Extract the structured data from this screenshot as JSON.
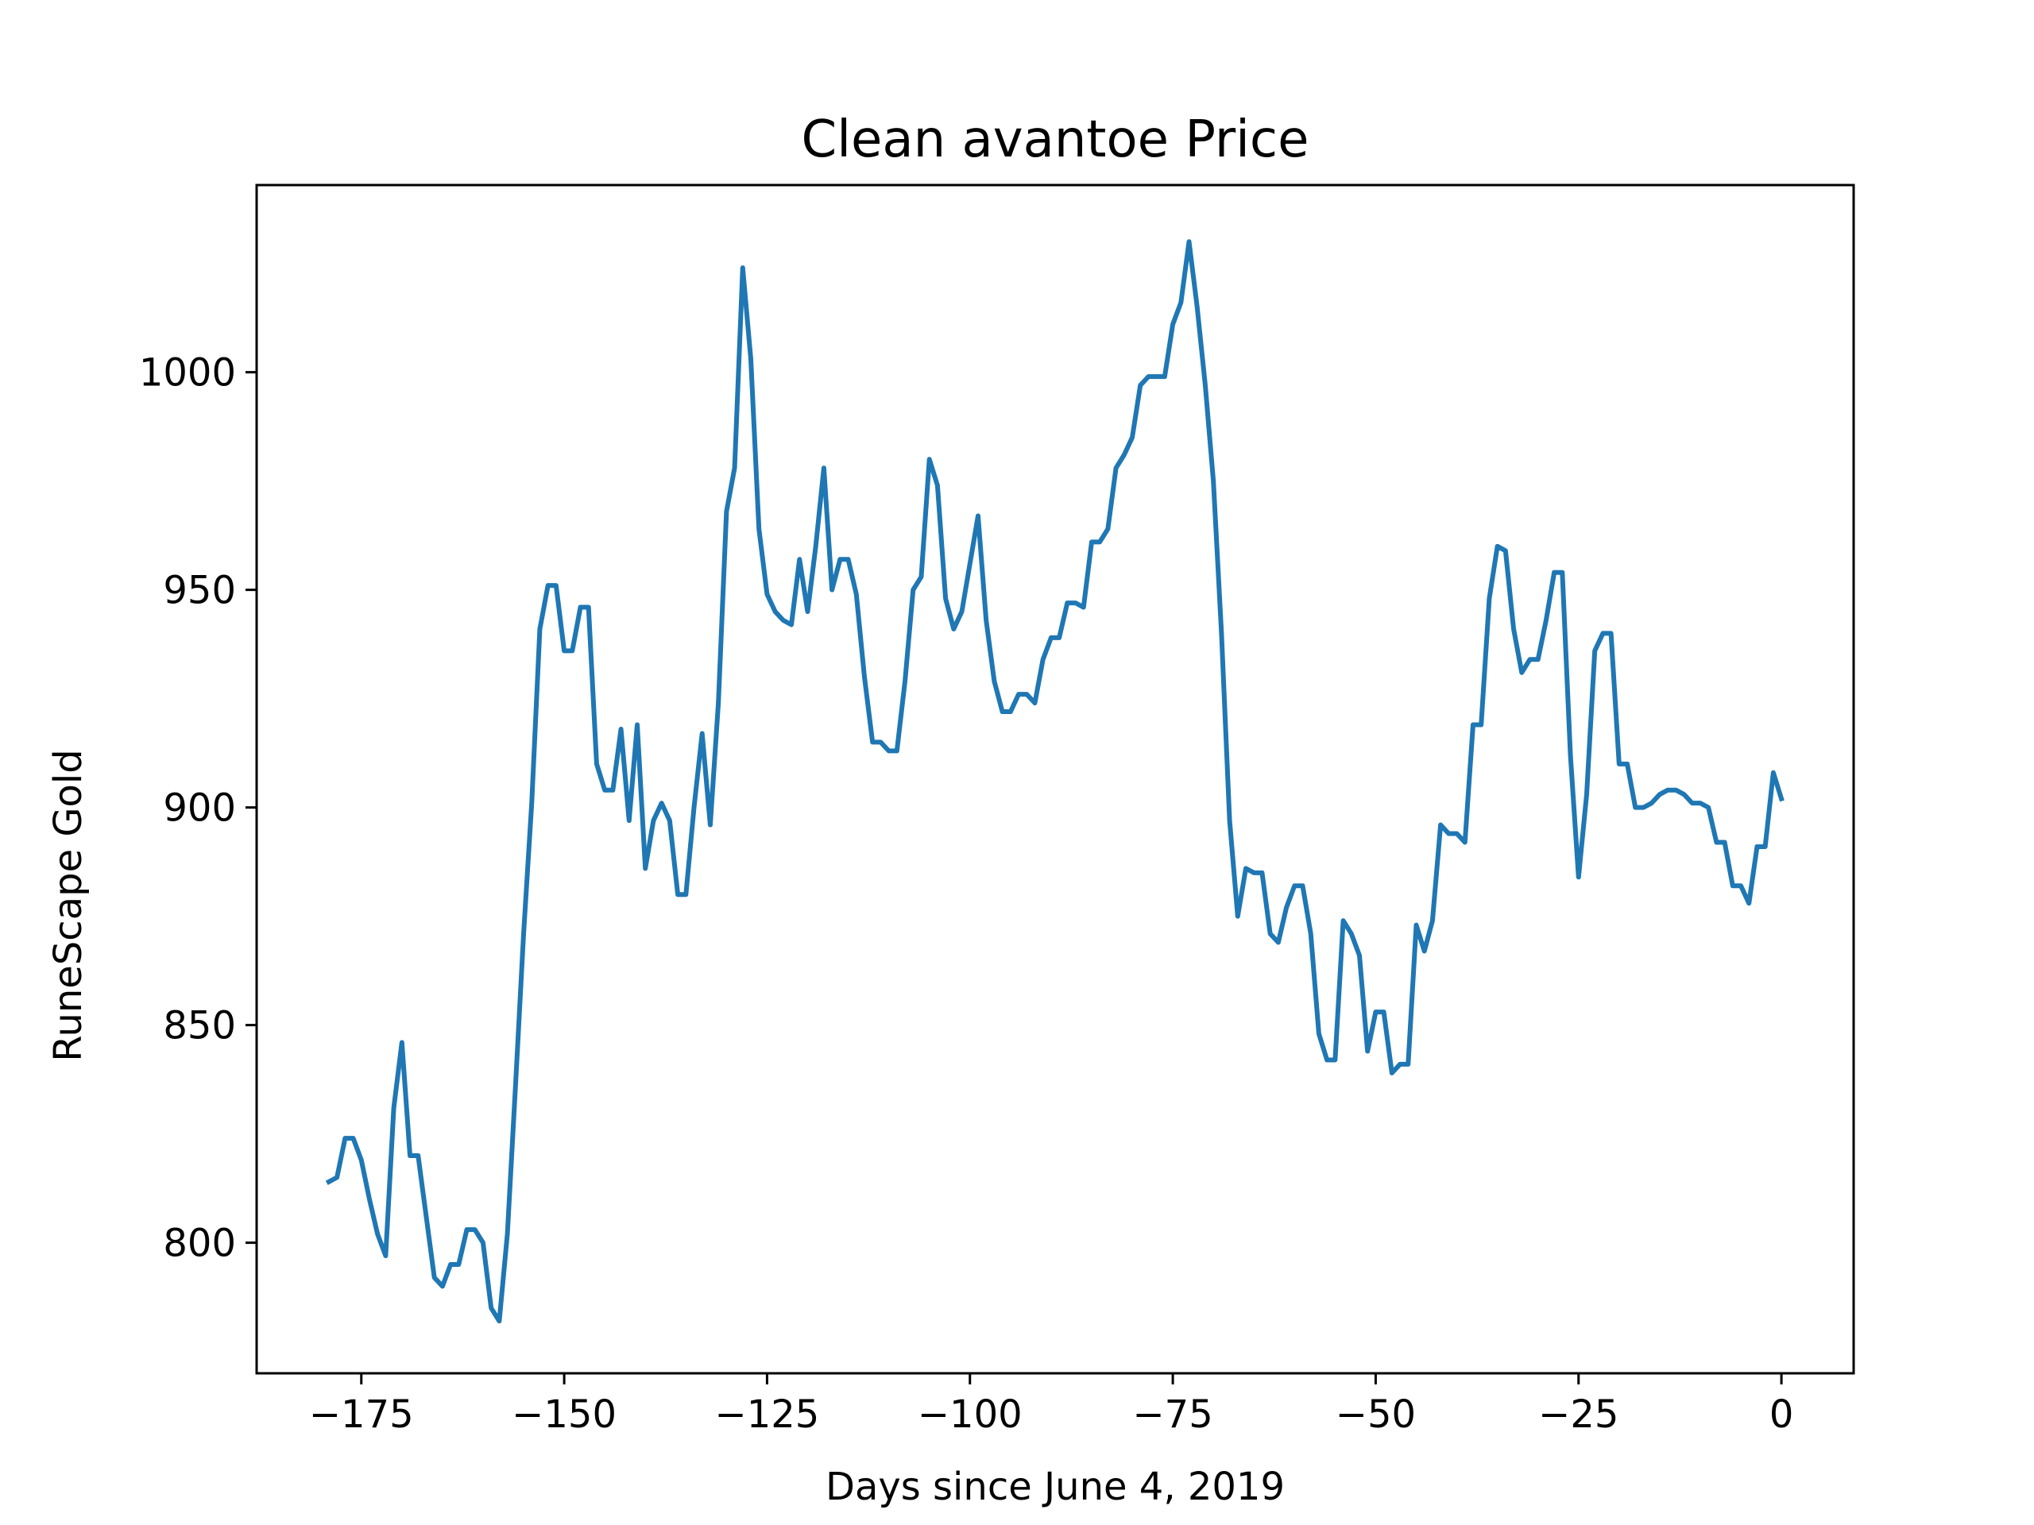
{
  "chart_data": {
    "type": "line",
    "title": "Clean avantoe Price",
    "xlabel": "Days since June 4, 2019",
    "ylabel": "RuneScape Gold",
    "xlim": [
      -187.9,
      8.9
    ],
    "ylim": [
      770,
      1043
    ],
    "x_ticks": [
      -175,
      -150,
      -125,
      -100,
      -75,
      -50,
      -25,
      0
    ],
    "x_tick_labels": [
      "−175",
      "−150",
      "−125",
      "−100",
      "−75",
      "−50",
      "−25",
      "0"
    ],
    "y_ticks": [
      800,
      850,
      900,
      950,
      1000
    ],
    "y_tick_labels": [
      "800",
      "850",
      "900",
      "950",
      "1000"
    ],
    "grid": false,
    "color": "#1f77b4",
    "series": [
      {
        "x": [
          -179,
          -178,
          -177,
          -176,
          -175,
          -174,
          -173,
          -172,
          -171,
          -170,
          -169,
          -168,
          -167,
          -166,
          -165,
          -164,
          -163,
          -162,
          -161,
          -160,
          -159,
          -158,
          -157,
          -156,
          -155,
          -154,
          -153,
          -152,
          -151,
          -150,
          -149,
          -148,
          -147,
          -146,
          -145,
          -144,
          -143,
          -142,
          -141,
          -140,
          -139,
          -138,
          -137,
          -136,
          -135,
          -134,
          -133,
          -132,
          -131,
          -130,
          -129,
          -128,
          -127,
          -126,
          -125,
          -124,
          -123,
          -122,
          -121,
          -120,
          -119,
          -118,
          -117,
          -116,
          -115,
          -114,
          -113,
          -112,
          -111,
          -110,
          -109,
          -108,
          -107,
          -106,
          -105,
          -104,
          -103,
          -102,
          -101,
          -100,
          -99,
          -98,
          -97,
          -96,
          -95,
          -94,
          -93,
          -92,
          -91,
          -90,
          -89,
          -88,
          -87,
          -86,
          -85,
          -84,
          -83,
          -82,
          -81,
          -80,
          -79,
          -78,
          -77,
          -76,
          -75,
          -74,
          -73,
          -72,
          -71,
          -70,
          -69,
          -68,
          -67,
          -66,
          -65,
          -64,
          -63,
          -62,
          -61,
          -60,
          -59,
          -58,
          -57,
          -56,
          -55,
          -54,
          -53,
          -52,
          -51,
          -50,
          -49,
          -48,
          -47,
          -46,
          -45,
          -44,
          -43,
          -42,
          -41,
          -40,
          -39,
          -38,
          -37,
          -36,
          -35,
          -34,
          -33,
          -32,
          -31,
          -30,
          -29,
          -28,
          -27,
          -26,
          -25,
          -24,
          -23,
          -22,
          -21,
          -20,
          -19,
          -18,
          -17,
          -16,
          -15,
          -14,
          -13,
          -12,
          -11,
          -10,
          -9,
          -8,
          -7,
          -6,
          -5,
          -4,
          -3,
          -2,
          -1,
          0
        ],
        "y": [
          814,
          815,
          824,
          824,
          819,
          810,
          802,
          797,
          831,
          846,
          820,
          820,
          806,
          792,
          790,
          795,
          795,
          803,
          803,
          800,
          785,
          782,
          802,
          836,
          871,
          901,
          941,
          951,
          951,
          936,
          936,
          946,
          946,
          910,
          904,
          904,
          918,
          897,
          919,
          886,
          897,
          901,
          897,
          880,
          880,
          900,
          917,
          896,
          924,
          968,
          978,
          1024,
          1003,
          964,
          949,
          945,
          943,
          942,
          957,
          945,
          960,
          978,
          950,
          957,
          957,
          949,
          930,
          915,
          915,
          913,
          913,
          929,
          950,
          953,
          980,
          974,
          948,
          941,
          945,
          956,
          967,
          943,
          929,
          922,
          922,
          926,
          926,
          924,
          934,
          939,
          939,
          947,
          947,
          946,
          961,
          961,
          964,
          978,
          981,
          985,
          997,
          999,
          999,
          999,
          1011,
          1016,
          1030,
          1015,
          997,
          975,
          940,
          897,
          875,
          886,
          885,
          885,
          871,
          869,
          877,
          882,
          882,
          871,
          848,
          842,
          842,
          874,
          871,
          866,
          844,
          853,
          853,
          839,
          841,
          841,
          873,
          867,
          874,
          896,
          894,
          894,
          892,
          919,
          919,
          948,
          960,
          959,
          941,
          931,
          934,
          934,
          943,
          954,
          954,
          912,
          884,
          903,
          936,
          940,
          940,
          910,
          910,
          900,
          900,
          901,
          903,
          904,
          904,
          903,
          901,
          901,
          900,
          892,
          892,
          882,
          882,
          878,
          891,
          891,
          908,
          902
        ]
      }
    ]
  }
}
